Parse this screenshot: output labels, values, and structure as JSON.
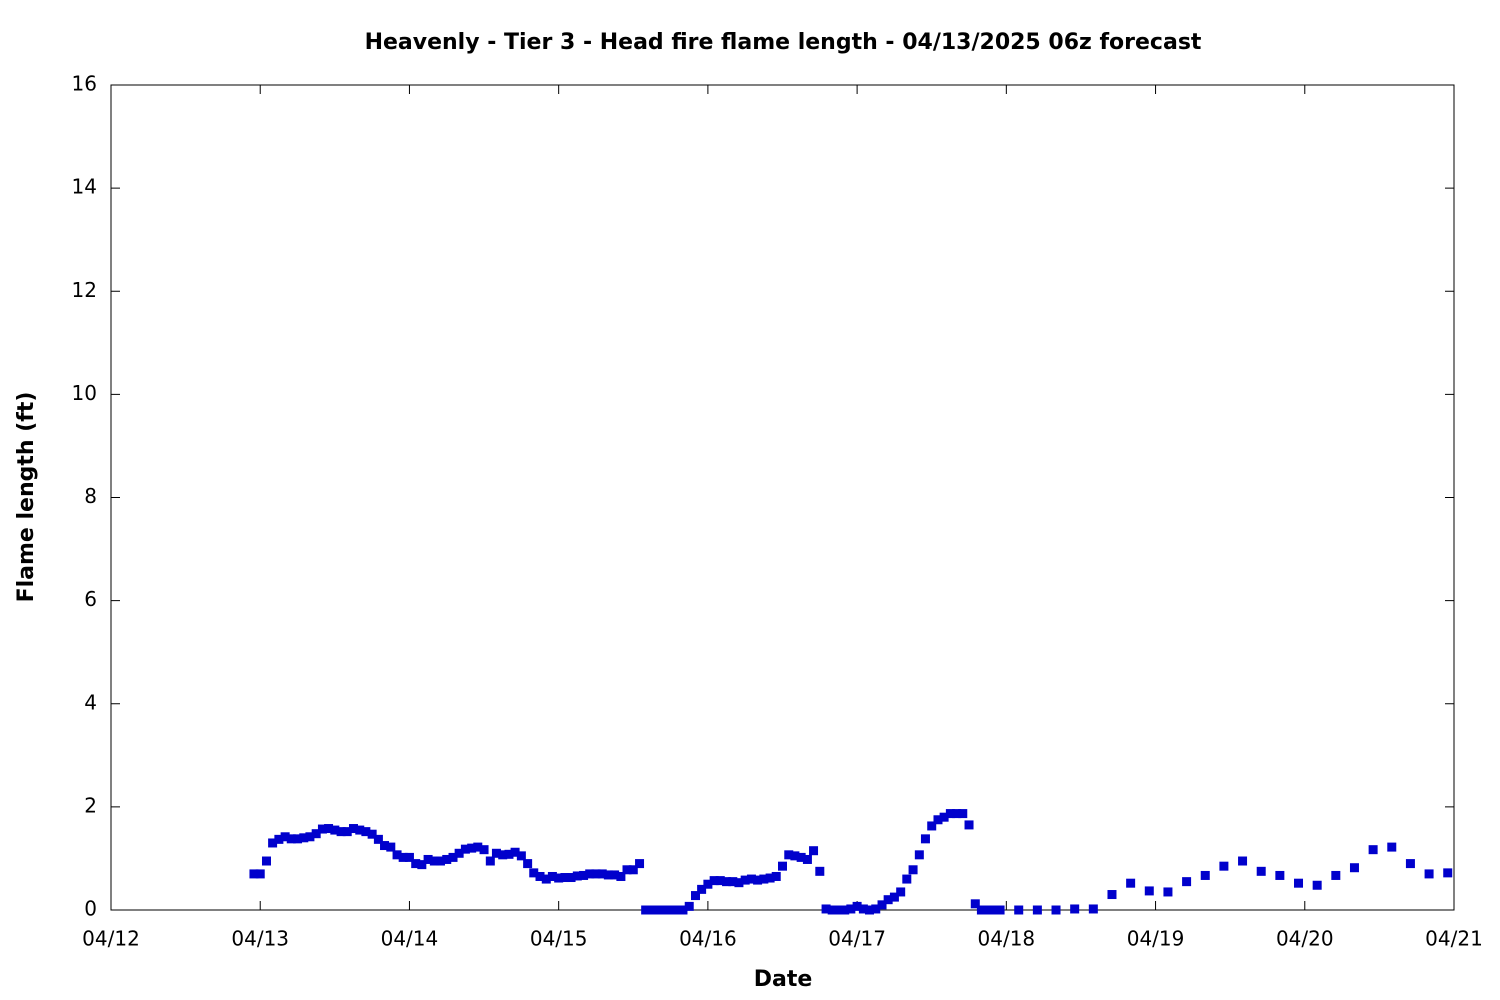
{
  "chart_data": {
    "type": "scatter",
    "title": "Heavenly - Tier 3 - Head fire flame length - 04/13/2025 06z forecast",
    "x_label": "Date",
    "y_label": "Flame length (ft)",
    "xlim": [
      0,
      9
    ],
    "xticks": [
      {
        "value": 0,
        "label": "04/12"
      },
      {
        "value": 1,
        "label": "04/13"
      },
      {
        "value": 2,
        "label": "04/14"
      },
      {
        "value": 3,
        "label": "04/15"
      },
      {
        "value": 4,
        "label": "04/16"
      },
      {
        "value": 5,
        "label": "04/17"
      },
      {
        "value": 6,
        "label": "04/18"
      },
      {
        "value": 7,
        "label": "04/19"
      },
      {
        "value": 8,
        "label": "04/20"
      },
      {
        "value": 9,
        "label": "04/21"
      }
    ],
    "ylim": [
      0,
      16
    ],
    "yticks": [
      0,
      2,
      4,
      6,
      8,
      10,
      12,
      14,
      16
    ],
    "grid": false,
    "series": [
      {
        "name": "Flame length",
        "color": "#0000cc",
        "x": [
          0.958,
          1,
          1.042,
          1.083,
          1.125,
          1.167,
          1.208,
          1.25,
          1.292,
          1.333,
          1.375,
          1.417,
          1.458,
          1.5,
          1.542,
          1.583,
          1.625,
          1.667,
          1.708,
          1.75,
          1.792,
          1.833,
          1.875,
          1.917,
          1.958,
          2,
          2.042,
          2.083,
          2.125,
          2.167,
          2.208,
          2.25,
          2.292,
          2.333,
          2.375,
          2.417,
          2.458,
          2.5,
          2.542,
          2.583,
          2.625,
          2.667,
          2.708,
          2.75,
          2.792,
          2.833,
          2.875,
          2.917,
          2.958,
          3,
          3.042,
          3.083,
          3.125,
          3.167,
          3.208,
          3.25,
          3.292,
          3.333,
          3.375,
          3.417,
          3.458,
          3.5,
          3.542,
          3.583,
          3.625,
          3.667,
          3.708,
          3.75,
          3.792,
          3.833,
          3.875,
          3.917,
          3.958,
          4,
          4.042,
          4.083,
          4.125,
          4.167,
          4.208,
          4.25,
          4.292,
          4.333,
          4.375,
          4.417,
          4.458,
          4.5,
          4.542,
          4.583,
          4.625,
          4.667,
          4.708,
          4.75,
          4.792,
          4.833,
          4.875,
          4.917,
          4.958,
          5,
          5.042,
          5.083,
          5.125,
          5.167,
          5.208,
          5.25,
          5.292,
          5.333,
          5.375,
          5.417,
          5.458,
          5.5,
          5.542,
          5.583,
          5.625,
          5.667,
          5.708,
          5.75,
          5.792,
          5.833,
          5.875,
          5.917,
          5.958,
          6.083,
          6.208,
          6.333,
          6.458,
          6.583,
          6.708,
          6.833,
          6.958,
          7.083,
          7.208,
          7.333,
          7.458,
          7.583,
          7.708,
          7.833,
          7.958,
          8.083,
          8.208,
          8.333,
          8.458,
          8.583,
          8.708,
          8.833,
          8.958
        ],
        "values": [
          0.7,
          0.7,
          0.95,
          1.3,
          1.37,
          1.42,
          1.38,
          1.38,
          1.4,
          1.42,
          1.48,
          1.57,
          1.58,
          1.55,
          1.52,
          1.52,
          1.58,
          1.55,
          1.52,
          1.47,
          1.37,
          1.25,
          1.22,
          1.07,
          1.02,
          1.02,
          0.9,
          0.88,
          0.98,
          0.95,
          0.95,
          0.98,
          1.02,
          1.1,
          1.18,
          1.2,
          1.22,
          1.17,
          0.95,
          1.1,
          1.07,
          1.08,
          1.12,
          1.05,
          0.9,
          0.72,
          0.65,
          0.6,
          0.65,
          0.62,
          0.63,
          0.63,
          0.66,
          0.67,
          0.7,
          0.7,
          0.7,
          0.68,
          0.68,
          0.65,
          0.78,
          0.78,
          0.9,
          0,
          0,
          0,
          0,
          0,
          0,
          0,
          0.07,
          0.28,
          0.4,
          0.5,
          0.57,
          0.57,
          0.55,
          0.55,
          0.53,
          0.58,
          0.6,
          0.58,
          0.6,
          0.62,
          0.65,
          0.85,
          1.07,
          1.05,
          1.02,
          0.98,
          1.15,
          0.75,
          0.02,
          0,
          0,
          0,
          0.02,
          0.07,
          0.02,
          0,
          0.02,
          0.1,
          0.2,
          0.25,
          0.35,
          0.6,
          0.78,
          1.07,
          1.38,
          1.63,
          1.75,
          1.8,
          1.87,
          1.87,
          1.87,
          1.65,
          0.12,
          0,
          0,
          0,
          0,
          0,
          0,
          0,
          0.02,
          0.02,
          0.3,
          0.52,
          0.37,
          0.35,
          0.55,
          0.67,
          0.85,
          0.95,
          0.75,
          0.67,
          0.52,
          0.48,
          0.67,
          0.82,
          1.17,
          1.22,
          0.9,
          0.7,
          0.72
        ]
      }
    ]
  }
}
